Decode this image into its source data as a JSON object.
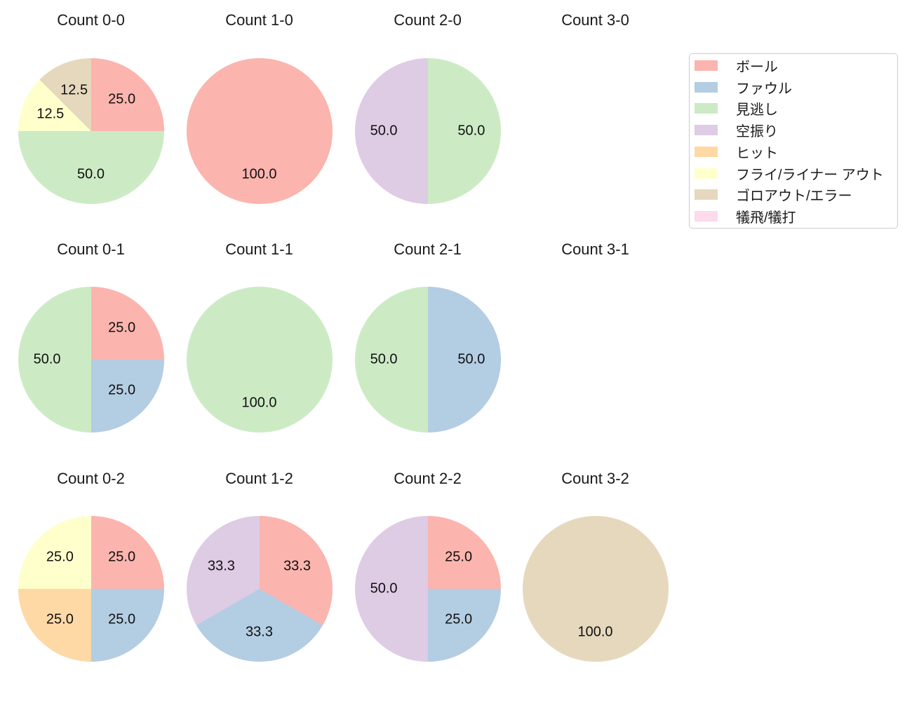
{
  "figure": {
    "background_color": "#ffffff",
    "text_color": "#1a1a1a"
  },
  "legend": {
    "border_color": "#cccccc",
    "items": [
      {
        "label": "ボール",
        "color": "#fbb4ae"
      },
      {
        "label": "ファウル",
        "color": "#b3cde3"
      },
      {
        "label": "見逃し",
        "color": "#ccebc5"
      },
      {
        "label": "空振り",
        "color": "#decbe4"
      },
      {
        "label": "ヒット",
        "color": "#fed9a6"
      },
      {
        "label": "フライ/ライナー アウト",
        "color": "#ffffcc"
      },
      {
        "label": "ゴロアウト/エラー",
        "color": "#e5d8bd"
      },
      {
        "label": "犠飛/犠打",
        "color": "#fddaec"
      }
    ]
  },
  "chart_data": {
    "type": "pie",
    "layout_hint": "grid of 12 subplots, 4 columns x 3 rows, slices start at 12 o'clock and run clockwise, percent labels at 0.6 radius",
    "charts": [
      {
        "title": "Count 0-0",
        "row": 0,
        "col": 0,
        "slices": [
          {
            "category": "ボール",
            "value": 25.0,
            "label": "25.0"
          },
          {
            "category": "見逃し",
            "value": 50.0,
            "label": "50.0"
          },
          {
            "category": "フライ/ライナー アウト",
            "value": 12.5,
            "label": "12.5"
          },
          {
            "category": "ゴロアウト/エラー",
            "value": 12.5,
            "label": "12.5"
          }
        ]
      },
      {
        "title": "Count 1-0",
        "row": 0,
        "col": 1,
        "slices": [
          {
            "category": "ボール",
            "value": 100.0,
            "label": "100.0"
          }
        ]
      },
      {
        "title": "Count 2-0",
        "row": 0,
        "col": 2,
        "slices": [
          {
            "category": "見逃し",
            "value": 50.0,
            "label": "50.0"
          },
          {
            "category": "空振り",
            "value": 50.0,
            "label": "50.0"
          }
        ]
      },
      {
        "title": "Count 3-0",
        "row": 0,
        "col": 3,
        "slices": []
      },
      {
        "title": "Count 0-1",
        "row": 1,
        "col": 0,
        "slices": [
          {
            "category": "ボール",
            "value": 25.0,
            "label": "25.0"
          },
          {
            "category": "ファウル",
            "value": 25.0,
            "label": "25.0"
          },
          {
            "category": "見逃し",
            "value": 50.0,
            "label": "50.0"
          }
        ]
      },
      {
        "title": "Count 1-1",
        "row": 1,
        "col": 1,
        "slices": [
          {
            "category": "見逃し",
            "value": 100.0,
            "label": "100.0"
          }
        ]
      },
      {
        "title": "Count 2-1",
        "row": 1,
        "col": 2,
        "slices": [
          {
            "category": "ファウル",
            "value": 50.0,
            "label": "50.0"
          },
          {
            "category": "見逃し",
            "value": 50.0,
            "label": "50.0"
          }
        ]
      },
      {
        "title": "Count 3-1",
        "row": 1,
        "col": 3,
        "slices": []
      },
      {
        "title": "Count 0-2",
        "row": 2,
        "col": 0,
        "slices": [
          {
            "category": "ボール",
            "value": 25.0,
            "label": "25.0"
          },
          {
            "category": "ファウル",
            "value": 25.0,
            "label": "25.0"
          },
          {
            "category": "ヒット",
            "value": 25.0,
            "label": "25.0"
          },
          {
            "category": "フライ/ライナー アウト",
            "value": 25.0,
            "label": "25.0"
          }
        ]
      },
      {
        "title": "Count 1-2",
        "row": 2,
        "col": 1,
        "slices": [
          {
            "category": "ボール",
            "value": 33.3,
            "label": "33.3"
          },
          {
            "category": "ファウル",
            "value": 33.3,
            "label": "33.3"
          },
          {
            "category": "空振り",
            "value": 33.3,
            "label": "33.3"
          }
        ]
      },
      {
        "title": "Count 2-2",
        "row": 2,
        "col": 2,
        "slices": [
          {
            "category": "ボール",
            "value": 25.0,
            "label": "25.0"
          },
          {
            "category": "ファウル",
            "value": 25.0,
            "label": "25.0"
          },
          {
            "category": "空振り",
            "value": 50.0,
            "label": "50.0"
          }
        ]
      },
      {
        "title": "Count 3-2",
        "row": 2,
        "col": 3,
        "slices": [
          {
            "category": "ゴロアウト/エラー",
            "value": 100.0,
            "label": "100.0"
          }
        ]
      }
    ]
  }
}
